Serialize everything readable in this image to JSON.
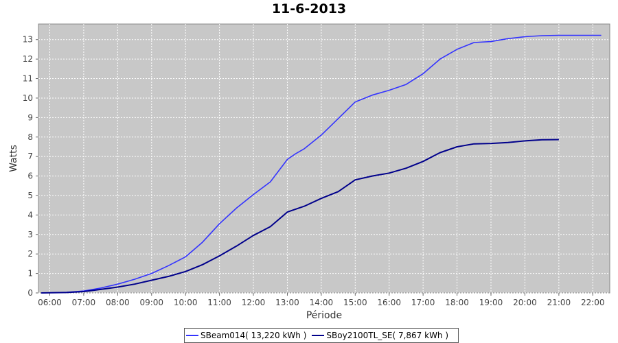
{
  "chart_data": {
    "type": "line",
    "title": "11-6-2013",
    "xlabel": "Période",
    "ylabel": "Watts",
    "x_tick_labels": [
      "06:00",
      "07:00",
      "08:00",
      "09:00",
      "10:00",
      "11:00",
      "12:00",
      "13:00",
      "14:00",
      "15:00",
      "16:00",
      "17:00",
      "18:00",
      "19:00",
      "20:00",
      "21:00",
      "22:00"
    ],
    "y_ticks": [
      0,
      1,
      2,
      3,
      4,
      5,
      6,
      7,
      8,
      9,
      10,
      11,
      12,
      13
    ],
    "ylim": [
      0,
      13.8
    ],
    "xlim": [
      "05:40",
      "22:30"
    ],
    "grid": true,
    "legend_position": "bottom",
    "background_color": "#c8c8c8",
    "series": [
      {
        "name": "SBeam014( 13,220 kWh )",
        "color": "#3333ff",
        "x": [
          "05:45",
          "06:30",
          "07:00",
          "07:30",
          "08:00",
          "08:30",
          "09:00",
          "09:30",
          "10:00",
          "10:30",
          "11:00",
          "11:30",
          "12:00",
          "12:30",
          "13:00",
          "13:15",
          "13:30",
          "14:00",
          "14:30",
          "15:00",
          "15:30",
          "16:00",
          "16:30",
          "17:00",
          "17:30",
          "18:00",
          "18:30",
          "19:00",
          "19:30",
          "20:00",
          "20:30",
          "21:00",
          "21:30",
          "22:15"
        ],
        "y": [
          0,
          0.03,
          0.1,
          0.25,
          0.45,
          0.7,
          1.0,
          1.4,
          1.85,
          2.6,
          3.55,
          4.35,
          5.05,
          5.7,
          6.85,
          7.15,
          7.4,
          8.1,
          8.95,
          9.8,
          10.15,
          10.4,
          10.7,
          11.25,
          12.0,
          12.5,
          12.85,
          12.9,
          13.05,
          13.15,
          13.2,
          13.22,
          13.22,
          13.22
        ]
      },
      {
        "name": "SBoy2100TL_SE( 7,867 kWh )",
        "color": "#00008b",
        "x": [
          "05:45",
          "06:30",
          "07:00",
          "07:30",
          "08:00",
          "08:30",
          "09:00",
          "09:30",
          "10:00",
          "10:30",
          "11:00",
          "11:30",
          "12:00",
          "12:30",
          "13:00",
          "13:30",
          "14:00",
          "14:30",
          "15:00",
          "15:30",
          "16:00",
          "16:30",
          "17:00",
          "17:30",
          "18:00",
          "18:30",
          "19:00",
          "19:30",
          "20:00",
          "20:30",
          "21:00"
        ],
        "y": [
          0,
          0.02,
          0.07,
          0.18,
          0.3,
          0.45,
          0.65,
          0.85,
          1.1,
          1.45,
          1.9,
          2.4,
          2.95,
          3.4,
          4.15,
          4.45,
          4.85,
          5.2,
          5.8,
          6.0,
          6.15,
          6.4,
          6.75,
          7.2,
          7.5,
          7.65,
          7.67,
          7.72,
          7.8,
          7.86,
          7.867
        ]
      }
    ]
  }
}
